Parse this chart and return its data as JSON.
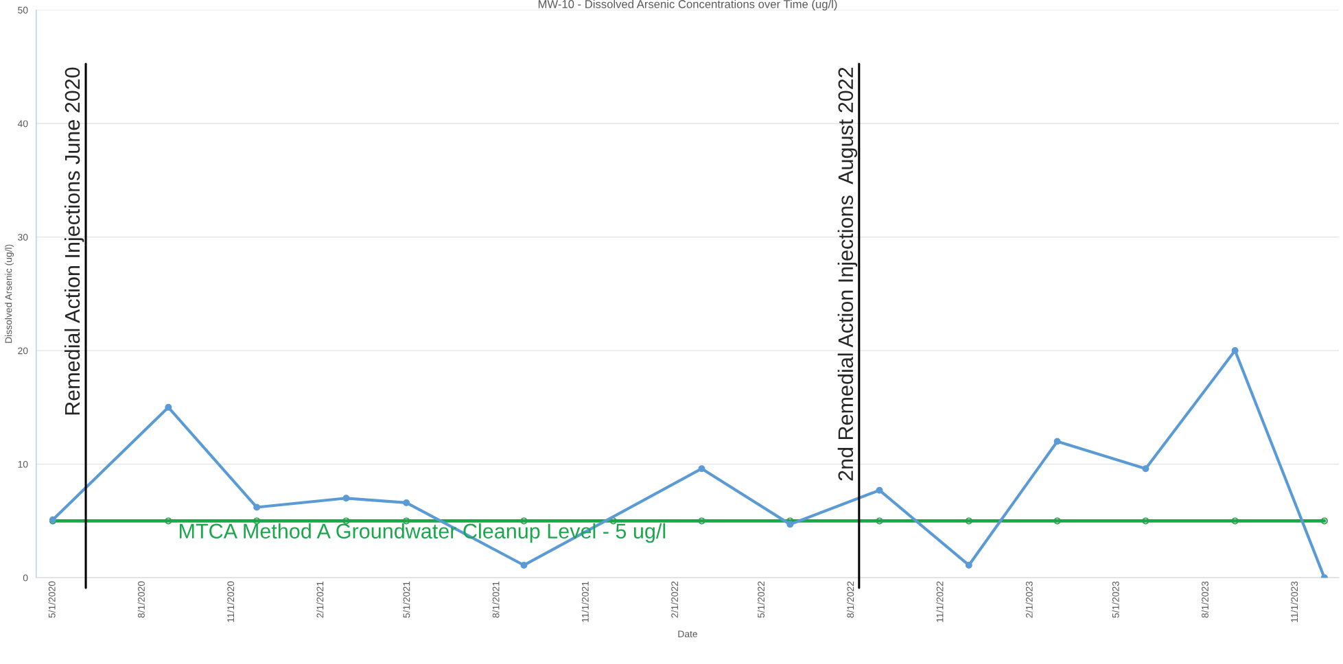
{
  "chart_data": {
    "type": "line",
    "title": "MW-10 - Dissolved Arsenic Concentrations over Time (ug/l)",
    "xlabel": "Date",
    "ylabel": "Dissolved Arsenic (ug/l)",
    "series": [
      {
        "color": "#5b9bd5",
        "marker": "circle",
        "x": [
          "2020-05-01",
          "2020-08-28",
          "2020-11-27",
          "2021-02-27",
          "2021-04-30",
          "2021-08-29",
          "2022-02-28",
          "2022-05-30",
          "2022-08-30",
          "2022-11-30",
          "2023-03-01",
          "2023-05-31",
          "2023-08-31",
          "2023-12-01"
        ],
        "values": [
          5.1,
          15,
          6.2,
          7.0,
          6.6,
          1.1,
          9.6,
          4.7,
          7.7,
          1.1,
          12,
          9.6,
          20,
          0
        ]
      },
      {
        "name": "MTCA Method A Groundwater Cleanup Level - 5 ug/l",
        "color": "#1aa64a",
        "marker": "circle",
        "x": [
          "2020-05-01",
          "2020-08-28",
          "2020-11-27",
          "2021-02-27",
          "2021-04-30",
          "2021-08-29",
          "2021-11-29",
          "2022-02-28",
          "2022-05-30",
          "2022-08-30",
          "2022-11-30",
          "2023-03-01",
          "2023-05-31",
          "2023-08-31",
          "2023-12-01"
        ],
        "values": [
          5,
          5,
          5,
          5,
          5,
          5,
          5,
          5,
          5,
          5,
          5,
          5,
          5,
          5,
          5
        ]
      }
    ],
    "ref_lines": [
      {
        "axis": "x",
        "value": "2020-06-04",
        "label": "Remedial Action Injections June 2020",
        "color": "#000000"
      },
      {
        "axis": "x",
        "value": "2022-08-09",
        "label": "2nd Remedial Action Injections  August 2022",
        "color": "#000000"
      }
    ],
    "xlim": [
      "2020-04-14",
      "2023-12-16"
    ],
    "xticks": [
      {
        "value": "2020-05-01",
        "label": "5/1/2020"
      },
      {
        "value": "2020-08-01",
        "label": "8/1/2020"
      },
      {
        "value": "2020-11-01",
        "label": "11/1/2020"
      },
      {
        "value": "2021-02-01",
        "label": "2/1/2021"
      },
      {
        "value": "2021-05-01",
        "label": "5/1/2021"
      },
      {
        "value": "2021-08-01",
        "label": "8/1/2021"
      },
      {
        "value": "2021-11-01",
        "label": "11/1/2021"
      },
      {
        "value": "2022-02-01",
        "label": "2/1/2022"
      },
      {
        "value": "2022-05-01",
        "label": "5/1/2022"
      },
      {
        "value": "2022-08-01",
        "label": "8/1/2022"
      },
      {
        "value": "2022-11-01",
        "label": "11/1/2022"
      },
      {
        "value": "2023-02-01",
        "label": "2/1/2023"
      },
      {
        "value": "2023-05-01",
        "label": "5/1/2023"
      },
      {
        "value": "2023-08-01",
        "label": "8/1/2023"
      },
      {
        "value": "2023-11-01",
        "label": "11/1/2023"
      }
    ],
    "ylim": [
      0,
      50
    ],
    "yticks": [
      0,
      10,
      20,
      30,
      40,
      50
    ],
    "grid": "y",
    "legend": false,
    "line_style": "solid"
  }
}
